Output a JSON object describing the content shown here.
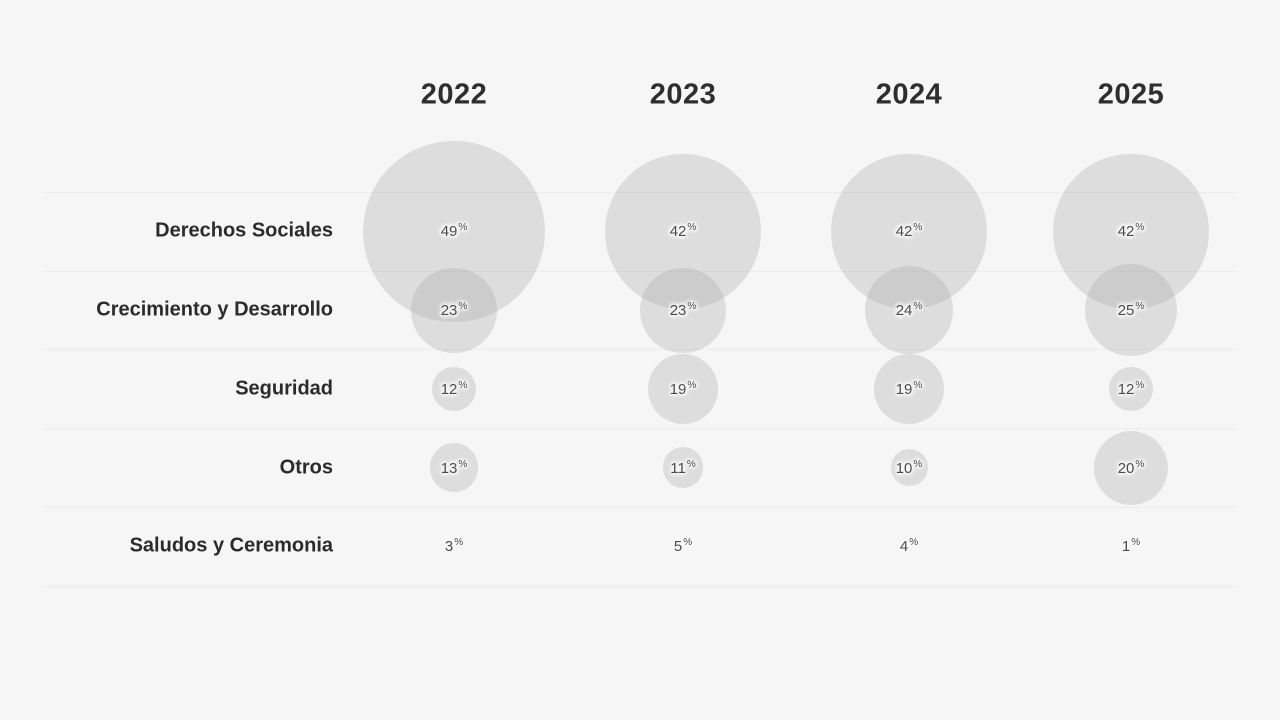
{
  "page": {
    "background_color": "#f6f6f6"
  },
  "chart_data": {
    "type": "scatter",
    "subtype": "bubble-matrix",
    "title": "",
    "columns": [
      "2022",
      "2023",
      "2024",
      "2025"
    ],
    "rows": [
      "Derechos Sociales",
      "Crecimiento y Desarrollo",
      "Seguridad",
      "Otros",
      "Saludos y Ceremonia"
    ],
    "series": [
      {
        "name": "2022",
        "values": [
          49,
          23,
          12,
          13,
          3
        ]
      },
      {
        "name": "2023",
        "values": [
          42,
          23,
          19,
          11,
          5
        ]
      },
      {
        "name": "2024",
        "values": [
          42,
          24,
          19,
          10,
          4
        ]
      },
      {
        "name": "2025",
        "values": [
          42,
          25,
          12,
          20,
          1
        ]
      }
    ],
    "value_suffix": "%",
    "legend": "none",
    "grid": "horizontal-row-separators",
    "gridline_color": "#ececec",
    "bubble_color": "#aaaaaa",
    "bubble_opacity": 0.33,
    "min_visible_bubble_value": 8,
    "radius_px_per_percent": 1.85,
    "header_text_color": "#2e2e2e",
    "row_label_color": "#2b2b2b",
    "value_text_color": "#4a4a4a"
  }
}
